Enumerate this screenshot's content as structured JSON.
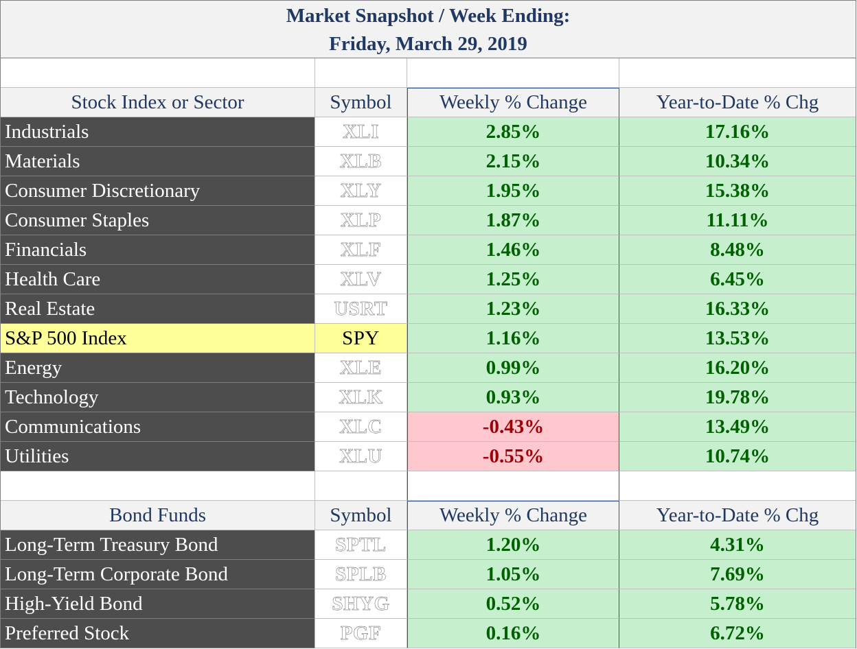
{
  "title": {
    "line1": "Market Snapshot / Week Ending:",
    "line2": "Friday, March 29, 2019"
  },
  "colors": {
    "header_text": "#1f3864",
    "row_label_bg": "#4d4d4d",
    "positive_bg": "#c6efce",
    "positive_text": "#006100",
    "negative_bg": "#ffc7ce",
    "negative_text": "#9c0006",
    "highlight_bg": "#ffff99"
  },
  "stocks": {
    "headers": [
      "Stock Index or Sector",
      "Symbol",
      "Weekly % Change",
      "Year-to-Date % Chg"
    ],
    "rows": [
      {
        "name": "Industrials",
        "symbol": "XLI",
        "weekly": "2.85%",
        "ytd": "17.16%",
        "weekly_sign": "pos"
      },
      {
        "name": "Materials",
        "symbol": "XLB",
        "weekly": "2.15%",
        "ytd": "10.34%",
        "weekly_sign": "pos"
      },
      {
        "name": "Consumer Discretionary",
        "symbol": "XLY",
        "weekly": "1.95%",
        "ytd": "15.38%",
        "weekly_sign": "pos"
      },
      {
        "name": "Consumer Staples",
        "symbol": "XLP",
        "weekly": "1.87%",
        "ytd": "11.11%",
        "weekly_sign": "pos"
      },
      {
        "name": "Financials",
        "symbol": "XLF",
        "weekly": "1.46%",
        "ytd": "8.48%",
        "weekly_sign": "pos"
      },
      {
        "name": "Health Care",
        "symbol": "XLV",
        "weekly": "1.25%",
        "ytd": "6.45%",
        "weekly_sign": "pos"
      },
      {
        "name": "Real Estate",
        "symbol": "USRT",
        "weekly": "1.23%",
        "ytd": "16.33%",
        "weekly_sign": "pos"
      },
      {
        "name": "S&P 500 Index",
        "symbol": "SPY",
        "weekly": "1.16%",
        "ytd": "13.53%",
        "weekly_sign": "pos",
        "highlight": true
      },
      {
        "name": "Energy",
        "symbol": "XLE",
        "weekly": "0.99%",
        "ytd": "16.20%",
        "weekly_sign": "pos"
      },
      {
        "name": "Technology",
        "symbol": "XLK",
        "weekly": "0.93%",
        "ytd": "19.78%",
        "weekly_sign": "pos"
      },
      {
        "name": "Communications",
        "symbol": "XLC",
        "weekly": "-0.43%",
        "ytd": "13.49%",
        "weekly_sign": "neg"
      },
      {
        "name": "Utilities",
        "symbol": "XLU",
        "weekly": "-0.55%",
        "ytd": "10.74%",
        "weekly_sign": "neg"
      }
    ]
  },
  "bonds": {
    "headers": [
      "Bond Funds",
      "Symbol",
      "Weekly % Change",
      "Year-to-Date % Chg"
    ],
    "rows": [
      {
        "name": "Long-Term Treasury Bond",
        "symbol": "SPTL",
        "weekly": "1.20%",
        "ytd": "4.31%",
        "weekly_sign": "pos"
      },
      {
        "name": "Long-Term Corporate Bond",
        "symbol": "SPLB",
        "weekly": "1.05%",
        "ytd": "7.69%",
        "weekly_sign": "pos"
      },
      {
        "name": "High-Yield Bond",
        "symbol": "SHYG",
        "weekly": "0.52%",
        "ytd": "5.78%",
        "weekly_sign": "pos"
      },
      {
        "name": "Preferred Stock",
        "symbol": "PGF",
        "weekly": "0.16%",
        "ytd": "6.72%",
        "weekly_sign": "pos"
      }
    ]
  }
}
